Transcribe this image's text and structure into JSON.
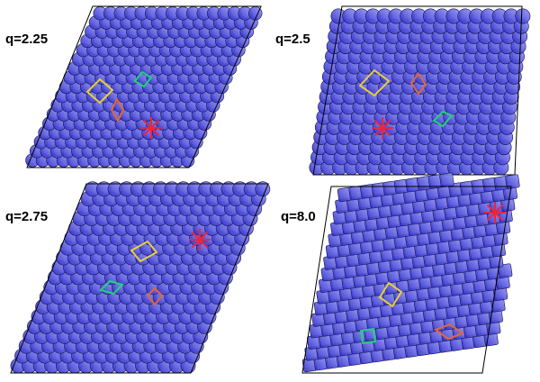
{
  "colors": {
    "particle_fill_light": "#9a9af4",
    "particle_fill_dark": "#2a2acc",
    "particle_stroke": "#10104a",
    "outline": "#000000",
    "marker_yellow": "#e8cf3a",
    "marker_green": "#22d37a",
    "marker_orange": "#e0683a",
    "marker_star": "#e8263f"
  },
  "panels": [
    {
      "label": "q=2.25",
      "shape": "disk"
    },
    {
      "label": "q=2.5",
      "shape": "disk"
    },
    {
      "label": "q=2.75",
      "shape": "disk"
    },
    {
      "label": "q=8.0",
      "shape": "superellipse"
    }
  ]
}
